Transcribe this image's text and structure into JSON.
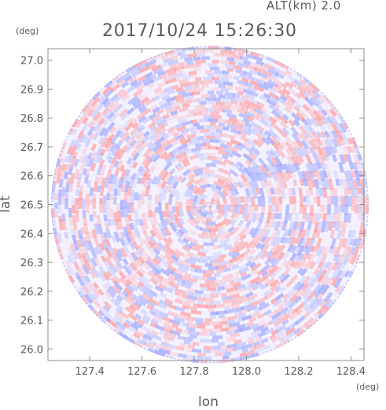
{
  "header": {
    "altitude_label": "ALT(km) 2.0",
    "timestamp": "2017/10/24 15:26:30"
  },
  "axes": {
    "y_unit": "(deg)",
    "x_unit": "(deg)",
    "y_label": "lat",
    "x_label": "lon"
  },
  "colors": {
    "positive": "#ff9a9a",
    "negative": "#9aa4ff",
    "axis": "#8c8c8c"
  },
  "chart_data": {
    "type": "heatmap",
    "title": "2017/10/24 15:26:30",
    "subtitle": "ALT(km) 2.0",
    "xlabel": "lon",
    "ylabel": "lat",
    "x_unit": "(deg)",
    "y_unit": "(deg)",
    "xlim": [
      127.24,
      128.45
    ],
    "ylim": [
      25.96,
      27.04
    ],
    "x_ticks": [
      "127.4",
      "127.6",
      "127.8",
      "128.0",
      "128.2",
      "128.4"
    ],
    "x_tick_values": [
      127.4,
      127.6,
      127.8,
      128.0,
      128.2,
      128.4
    ],
    "y_ticks": [
      "26.0",
      "26.1",
      "26.2",
      "26.3",
      "26.4",
      "26.5",
      "26.6",
      "26.7",
      "26.8",
      "26.9",
      "27.0"
    ],
    "y_tick_values": [
      26.0,
      26.1,
      26.2,
      26.3,
      26.4,
      26.5,
      26.6,
      26.7,
      26.8,
      26.9,
      27.0
    ],
    "radar_center": [
      127.86,
      26.5
    ],
    "radar_range_deg_lat": 0.55,
    "color_scale": "diverging red-white-blue",
    "grid": false
  }
}
